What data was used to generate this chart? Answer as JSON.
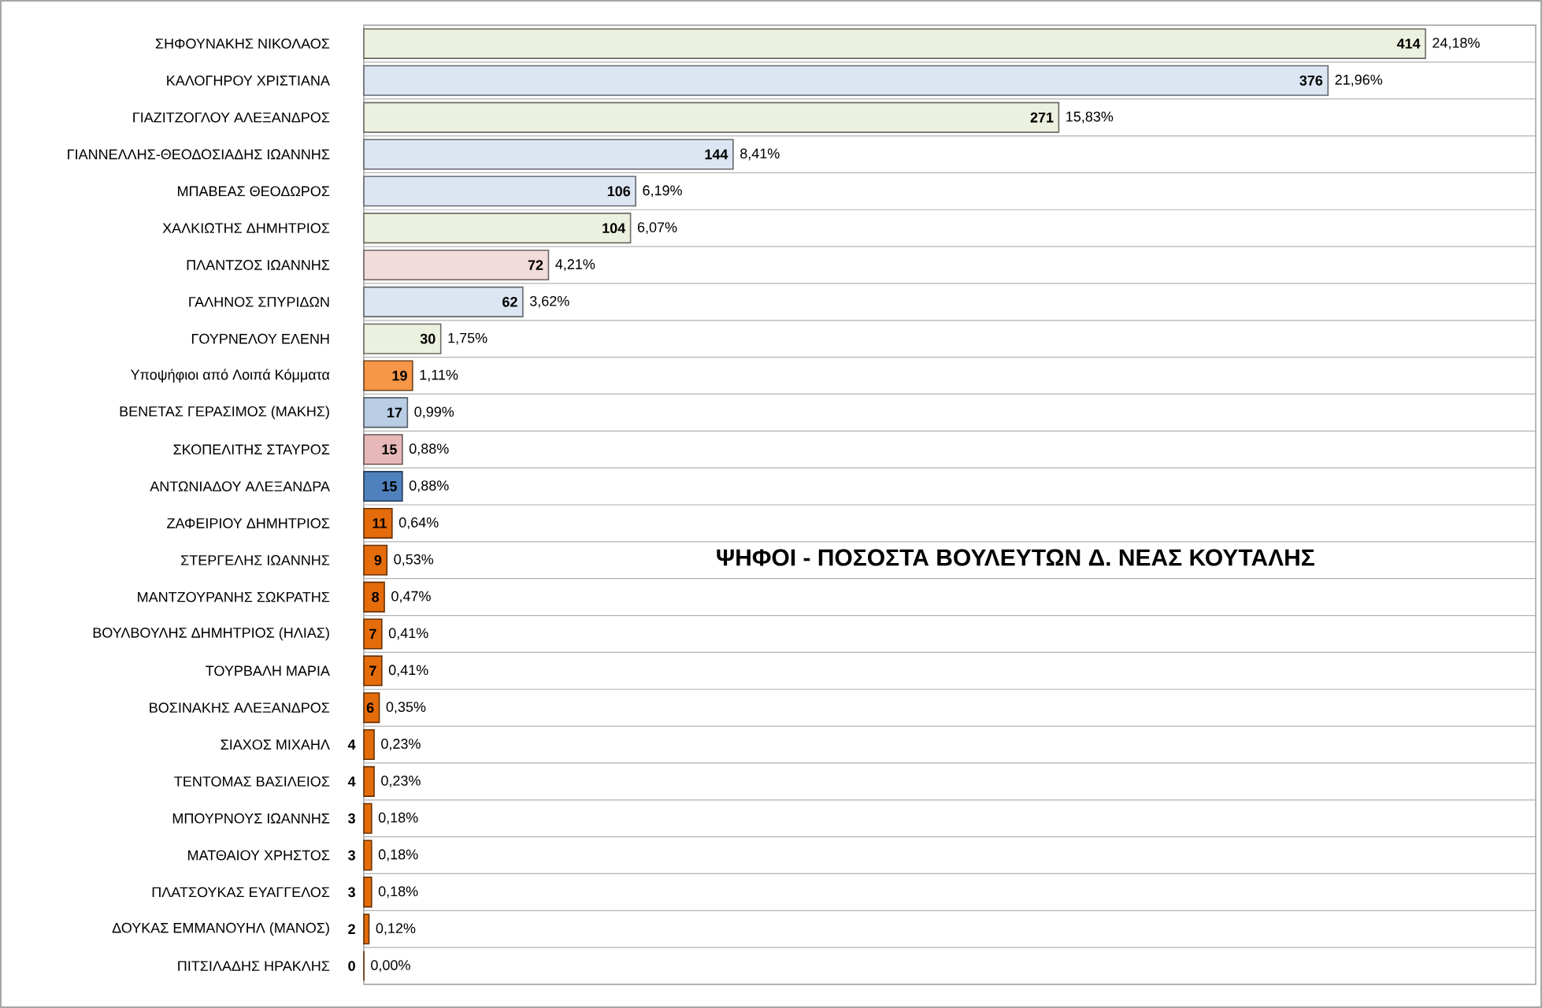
{
  "chart_data": {
    "type": "bar",
    "orientation": "horizontal",
    "title": "ΨΗΦΟΙ - ΠΟΣΟΣΤΑ ΒΟΥΛΕΥΤΩΝ Δ. ΝΕΑΣ ΚΟΥΤΑΛΗΣ",
    "categories": [
      "ΣΗΦΟΥΝΑΚΗΣ ΝΙΚΟΛΑΟΣ",
      "ΚΑΛΟΓΗΡΟΥ ΧΡΙΣΤΙΑΝΑ",
      "ΓΙΑΖΙΤΖΟΓΛΟΥ ΑΛΕΞΑΝΔΡΟΣ",
      "ΓΙΑΝΝΕΛΛΗΣ-ΘΕΟΔΟΣΙΑΔΗΣ ΙΩΑΝΝΗΣ",
      "ΜΠΑΒΕΑΣ ΘΕΟΔΩΡΟΣ",
      "ΧΑΛΚΙΩΤΗΣ ΔΗΜΗΤΡΙΟΣ",
      "ΠΛΑΝΤΖΟΣ ΙΩΑΝΝΗΣ",
      "ΓΑΛΗΝΟΣ ΣΠΥΡΙΔΩΝ",
      "ΓΟΥΡΝΕΛΟΥ ΕΛΕΝΗ",
      "Υποψήφιοι από Λοιπά Κόμματα",
      "ΒΕΝΕΤΑΣ ΓΕΡΑΣΙΜΟΣ (ΜΑΚΗΣ)",
      "ΣΚΟΠΕΛΙΤΗΣ ΣΤΑΥΡΟΣ",
      "ΑΝΤΩΝΙΑΔΟΥ ΑΛΕΞΑΝΔΡΑ",
      "ΖΑΦΕΙΡΙΟΥ ΔΗΜΗΤΡΙΟΣ",
      "ΣΤΕΡΓΕΛΗΣ ΙΩΑΝΝΗΣ",
      "ΜΑΝΤΖΟΥΡΑΝΗΣ ΣΩΚΡΑΤΗΣ",
      "ΒΟΥΛΒΟΥΛΗΣ ΔΗΜΗΤΡΙΟΣ (ΗΛΙΑΣ)",
      "ΤΟΥΡΒΑΛΗ ΜΑΡΙΑ",
      "ΒΟΣΙΝΑΚΗΣ ΑΛΕΞΑΝΔΡΟΣ",
      "ΣΙΑΧΟΣ ΜΙΧΑΗΛ",
      "ΤΕΝΤΟΜΑΣ ΒΑΣΙΛΕΙΟΣ",
      "ΜΠΟΥΡΝΟΥΣ ΙΩΑΝΝΗΣ",
      "ΜΑΤΘΑΙΟΥ ΧΡΗΣΤΟΣ",
      "ΠΛΑΤΣΟΥΚΑΣ ΕΥΑΓΓΕΛΟΣ",
      "ΔΟΥΚΑΣ ΕΜΜΑΝΟΥΗΛ (ΜΑΝΟΣ)",
      "ΠΙΤΣΙΛΑΔΗΣ ΗΡΑΚΛΗΣ"
    ],
    "values": [
      414,
      376,
      271,
      144,
      106,
      104,
      72,
      62,
      30,
      19,
      17,
      15,
      15,
      11,
      9,
      8,
      7,
      7,
      6,
      4,
      4,
      3,
      3,
      3,
      2,
      0
    ],
    "colors": [
      "#ebf1de",
      "#dce6f2",
      "#ebf1de",
      "#dce6f2",
      "#dce6f2",
      "#ebf1de",
      "#f2dcdb",
      "#dce6f2",
      "#ebf1de",
      "#f79646",
      "#b9cde5",
      "#e6b9b8",
      "#4f81bd",
      "#e46c0a",
      "#e46c0a",
      "#e46c0a",
      "#e46c0a",
      "#e46c0a",
      "#e46c0a",
      "#e46c0a",
      "#e46c0a",
      "#e46c0a",
      "#e46c0a",
      "#e46c0a",
      "#e46c0a",
      "#e46c0a"
    ],
    "xlim": [
      0,
      457
    ],
    "data_labels": true,
    "grid": "y",
    "annotations": [
      {
        "text": "24,18%",
        "x": 414,
        "y": "ΣΗΦΟΥΝΑΚΗΣ ΝΙΚΟΛΑΟΣ"
      },
      {
        "text": "21,96%",
        "x": 376,
        "y": "ΚΑΛΟΓΗΡΟΥ ΧΡΙΣΤΙΑΝΑ"
      },
      {
        "text": "15,83%",
        "x": 271,
        "y": "ΓΙΑΖΙΤΖΟΓΛΟΥ ΑΛΕΞΑΝΔΡΟΣ"
      },
      {
        "text": "8,41%",
        "x": 144,
        "y": "ΓΙΑΝΝΕΛΛΗΣ-ΘΕΟΔΟΣΙΑΔΗΣ ΙΩΑΝΝΗΣ"
      },
      {
        "text": "6,19%",
        "x": 106,
        "y": "ΜΠΑΒΕΑΣ ΘΕΟΔΩΡΟΣ"
      },
      {
        "text": "6,07%",
        "x": 104,
        "y": "ΧΑΛΚΙΩΤΗΣ ΔΗΜΗΤΡΙΟΣ"
      },
      {
        "text": "4,21%",
        "x": 72,
        "y": "ΠΛΑΝΤΖΟΣ ΙΩΑΝΝΗΣ"
      },
      {
        "text": "3,62%",
        "x": 62,
        "y": "ΓΑΛΗΝΟΣ ΣΠΥΡΙΔΩΝ"
      },
      {
        "text": "1,75%",
        "x": 30,
        "y": "ΓΟΥΡΝΕΛΟΥ ΕΛΕΝΗ"
      },
      {
        "text": "1,11%",
        "x": 19,
        "y": "Υποψήφιοι από Λοιπά Κόμματα"
      },
      {
        "text": "0,99%",
        "x": 17,
        "y": "ΒΕΝΕΤΑΣ ΓΕΡΑΣΙΜΟΣ (ΜΑΚΗΣ)"
      },
      {
        "text": "0,88%",
        "x": 15,
        "y": "ΣΚΟΠΕΛΙΤΗΣ ΣΤΑΥΡΟΣ"
      },
      {
        "text": "0,88%",
        "x": 15,
        "y": "ΑΝΤΩΝΙΑΔΟΥ ΑΛΕΞΑΝΔΡΑ"
      },
      {
        "text": "0,64%",
        "x": 11,
        "y": "ΖΑΦΕΙΡΙΟΥ ΔΗΜΗΤΡΙΟΣ"
      },
      {
        "text": "0,53%",
        "x": 9,
        "y": "ΣΤΕΡΓΕΛΗΣ ΙΩΑΝΝΗΣ"
      },
      {
        "text": "0,47%",
        "x": 8,
        "y": "ΜΑΝΤΖΟΥΡΑΝΗΣ ΣΩΚΡΑΤΗΣ"
      },
      {
        "text": "0,41%",
        "x": 7,
        "y": "ΒΟΥΛΒΟΥΛΗΣ ΔΗΜΗΤΡΙΟΣ (ΗΛΙΑΣ)"
      },
      {
        "text": "0,41%",
        "x": 7,
        "y": "ΤΟΥΡΒΑΛΗ ΜΑΡΙΑ"
      },
      {
        "text": "0,35%",
        "x": 6,
        "y": "ΒΟΣΙΝΑΚΗΣ ΑΛΕΞΑΝΔΡΟΣ"
      },
      {
        "text": "0,23%",
        "x": 4,
        "y": "ΣΙΑΧΟΣ ΜΙΧΑΗΛ"
      },
      {
        "text": "0,23%",
        "x": 4,
        "y": "ΤΕΝΤΟΜΑΣ ΒΑΣΙΛΕΙΟΣ"
      },
      {
        "text": "0,18%",
        "x": 3,
        "y": "ΜΠΟΥΡΝΟΥΣ ΙΩΑΝΝΗΣ"
      },
      {
        "text": "0,18%",
        "x": 3,
        "y": "ΜΑΤΘΑΙΟΥ ΧΡΗΣΤΟΣ"
      },
      {
        "text": "0,18%",
        "x": 3,
        "y": "ΠΛΑΤΣΟΥΚΑΣ ΕΥΑΓΓΕΛΟΣ"
      },
      {
        "text": "0,12%",
        "x": 2,
        "y": "ΔΟΥΚΑΣ ΕΜΜΑΝΟΥΗΛ (ΜΑΝΟΣ)"
      },
      {
        "text": "0,00%",
        "x": 0,
        "y": "ΠΙΤΣΙΛΑΔΗΣ ΗΡΑΚΛΗΣ"
      }
    ]
  }
}
